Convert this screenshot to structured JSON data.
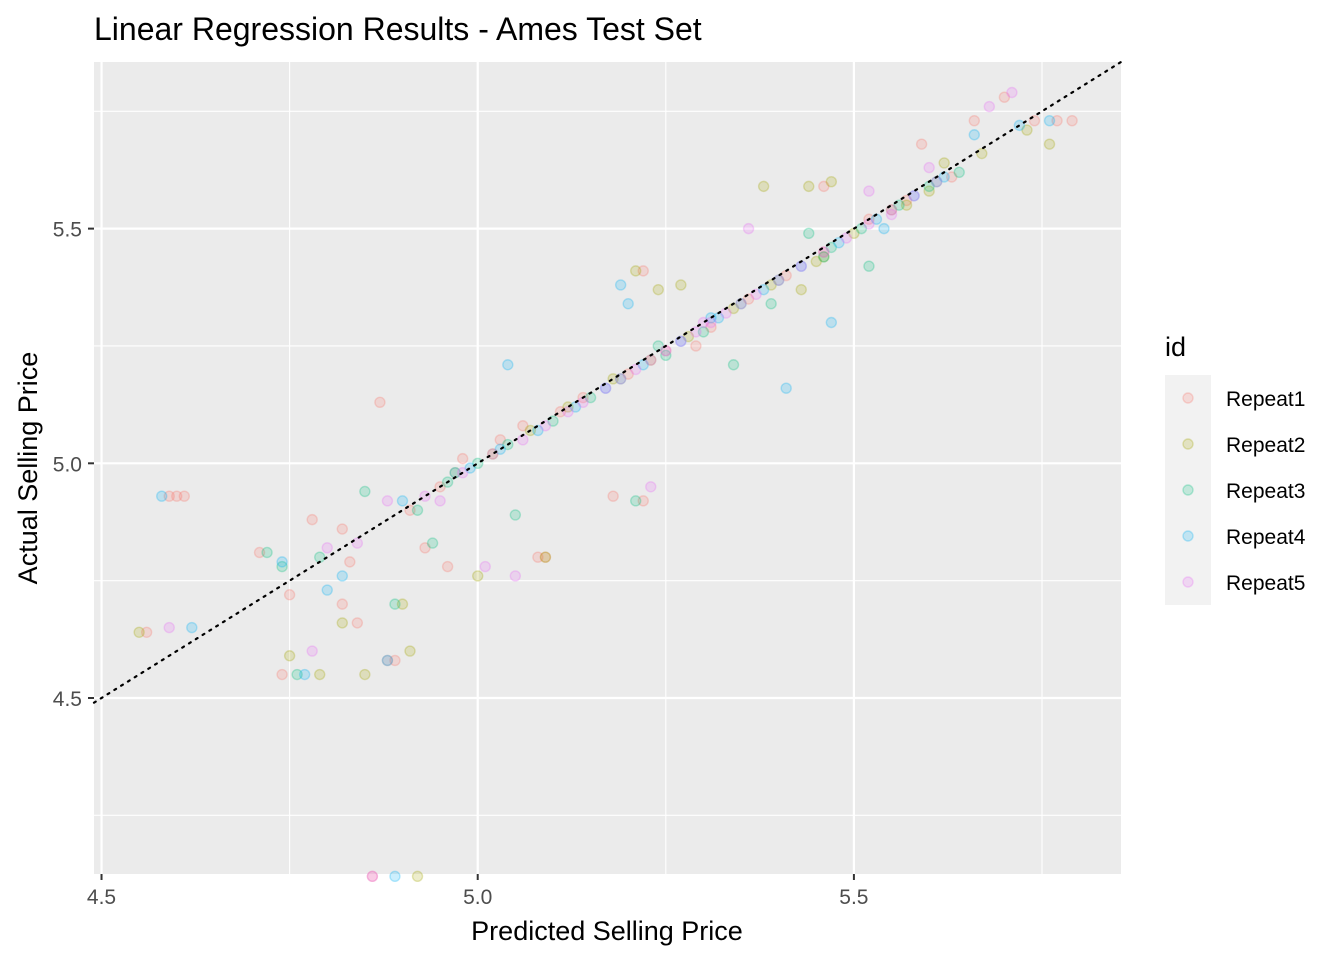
{
  "chart_data": {
    "type": "scatter",
    "title": "Linear Regression Results - Ames Test Set",
    "xlabel": "Predicted Selling Price",
    "ylabel": "Actual Selling Price",
    "xlim": [
      4.49,
      5.855
    ],
    "ylim": [
      4.125,
      5.855
    ],
    "x_ticks": [
      4.5,
      5.0,
      5.5
    ],
    "x_tick_labels": [
      "4.5",
      "5.0",
      "5.5"
    ],
    "y_ticks": [
      4.5,
      5.0,
      5.5
    ],
    "y_tick_labels": [
      "4.5",
      "5.0",
      "5.5"
    ],
    "grid": true,
    "reference_line": {
      "style": "dotted",
      "slope": 1,
      "intercept": 0,
      "color": "#000000"
    },
    "point_alpha": 0.2,
    "legend": {
      "title": "id",
      "placement": "right",
      "entries": [
        "Repeat1",
        "Repeat2",
        "Repeat3",
        "Repeat4",
        "Repeat5"
      ]
    },
    "series_colors": [
      "#F8766D",
      "#A3A500",
      "#00BF7D",
      "#00B0F6",
      "#E76BF3"
    ],
    "series": [
      {
        "name": "Repeat1",
        "x": [
          4.59,
          4.6,
          4.61,
          4.56,
          4.71,
          4.75,
          4.78,
          4.82,
          4.83,
          4.87,
          4.88,
          4.91,
          4.93,
          4.96,
          4.74,
          4.86,
          4.89,
          4.82,
          4.84,
          5.08,
          5.09,
          5.18,
          5.22,
          5.22,
          5.46,
          5.59,
          5.66,
          5.7,
          5.74,
          5.77,
          5.79,
          5.29,
          4.95,
          4.98,
          5.03,
          5.06,
          5.11,
          5.14,
          5.2,
          5.25,
          5.31,
          5.36,
          5.41,
          5.46,
          5.52,
          5.57,
          5.63
        ],
        "y": [
          4.93,
          4.93,
          4.93,
          4.64,
          4.81,
          4.72,
          4.88,
          4.86,
          4.79,
          5.13,
          4.58,
          4.9,
          4.82,
          4.78,
          4.55,
          4.12,
          4.58,
          4.7,
          4.66,
          4.8,
          4.8,
          4.93,
          4.92,
          5.41,
          5.59,
          5.68,
          5.73,
          5.78,
          5.73,
          5.73,
          5.73,
          5.25,
          4.95,
          5.01,
          5.05,
          5.08,
          5.11,
          5.14,
          5.19,
          5.24,
          5.29,
          5.35,
          5.4,
          5.45,
          5.52,
          5.56,
          5.61
        ]
      },
      {
        "name": "Repeat2",
        "x": [
          4.55,
          4.75,
          4.79,
          4.82,
          4.85,
          4.9,
          4.92,
          4.91,
          5.0,
          5.09,
          5.21,
          5.24,
          5.27,
          5.38,
          5.43,
          5.44,
          5.46,
          5.47,
          5.57,
          5.62,
          5.67,
          5.73,
          5.76,
          4.97,
          5.02,
          5.07,
          5.12,
          5.18,
          5.23,
          5.28,
          5.34,
          5.39,
          5.45,
          5.5,
          5.55,
          5.6
        ],
        "y": [
          4.64,
          4.59,
          4.55,
          4.66,
          4.55,
          4.7,
          4.12,
          4.6,
          4.76,
          4.8,
          5.41,
          5.37,
          5.38,
          5.59,
          5.37,
          5.59,
          5.44,
          5.6,
          5.55,
          5.64,
          5.66,
          5.71,
          5.68,
          4.98,
          5.02,
          5.07,
          5.12,
          5.18,
          5.22,
          5.27,
          5.33,
          5.38,
          5.43,
          5.49,
          5.54,
          5.58
        ]
      },
      {
        "name": "Repeat3",
        "x": [
          4.72,
          4.74,
          4.76,
          4.79,
          4.85,
          4.89,
          4.92,
          4.94,
          5.05,
          5.21,
          5.24,
          5.34,
          5.39,
          5.44,
          5.47,
          5.52,
          5.6,
          5.64,
          4.96,
          5.0,
          5.04,
          5.1,
          5.15,
          5.19,
          5.25,
          5.3,
          5.35,
          5.4,
          5.46,
          5.51,
          5.56,
          5.61
        ],
        "y": [
          4.81,
          4.78,
          4.55,
          4.8,
          4.94,
          4.7,
          4.9,
          4.83,
          4.89,
          4.92,
          5.25,
          5.21,
          5.34,
          5.49,
          5.46,
          5.42,
          5.59,
          5.62,
          4.96,
          5.0,
          5.04,
          5.09,
          5.14,
          5.18,
          5.23,
          5.28,
          5.34,
          5.39,
          5.44,
          5.5,
          5.55,
          5.6
        ]
      },
      {
        "name": "Repeat4",
        "x": [
          4.58,
          4.62,
          4.74,
          4.77,
          4.8,
          4.82,
          4.88,
          4.89,
          4.9,
          4.97,
          5.04,
          5.19,
          5.2,
          5.31,
          5.41,
          5.47,
          5.54,
          5.66,
          5.72,
          5.76,
          4.99,
          5.03,
          5.08,
          5.13,
          5.17,
          5.22,
          5.27,
          5.32,
          5.38,
          5.43,
          5.48,
          5.53,
          5.58,
          5.62
        ],
        "y": [
          4.93,
          4.65,
          4.79,
          4.55,
          4.73,
          4.76,
          4.58,
          4.12,
          4.92,
          4.98,
          5.21,
          5.38,
          5.34,
          5.31,
          5.16,
          5.3,
          5.5,
          5.7,
          5.72,
          5.73,
          4.99,
          5.03,
          5.07,
          5.12,
          5.16,
          5.21,
          5.26,
          5.31,
          5.37,
          5.42,
          5.47,
          5.52,
          5.57,
          5.61
        ]
      },
      {
        "name": "Repeat5",
        "x": [
          4.59,
          4.78,
          4.86,
          4.88,
          4.84,
          4.8,
          4.95,
          5.01,
          5.05,
          5.23,
          5.3,
          5.36,
          5.52,
          5.55,
          5.6,
          5.68,
          5.71,
          4.93,
          4.98,
          5.02,
          5.06,
          5.09,
          5.12,
          5.14,
          5.17,
          5.19,
          5.21,
          5.23,
          5.25,
          5.27,
          5.29,
          5.31,
          5.33,
          5.35,
          5.37,
          5.4,
          5.43,
          5.46,
          5.49,
          5.52,
          5.55,
          5.58,
          5.61
        ],
        "y": [
          4.65,
          4.6,
          4.12,
          4.92,
          4.83,
          4.82,
          4.92,
          4.78,
          4.76,
          4.95,
          5.3,
          5.5,
          5.58,
          5.53,
          5.63,
          5.76,
          5.79,
          4.93,
          4.98,
          5.02,
          5.05,
          5.08,
          5.11,
          5.13,
          5.16,
          5.18,
          5.2,
          5.22,
          5.24,
          5.26,
          5.28,
          5.3,
          5.32,
          5.34,
          5.36,
          5.39,
          5.42,
          5.45,
          5.48,
          5.51,
          5.54,
          5.57,
          5.6
        ]
      }
    ]
  }
}
